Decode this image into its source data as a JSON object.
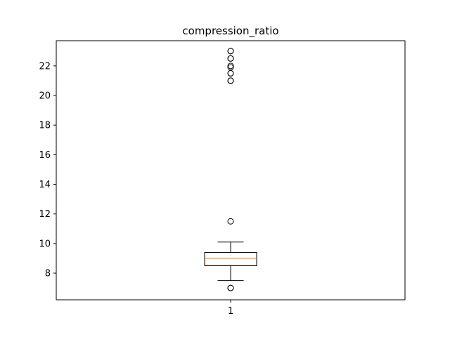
{
  "chart_data": {
    "type": "box",
    "title": "compression_ratio",
    "xlabel": "",
    "ylabel": "",
    "categories": [
      "1"
    ],
    "yticks": [
      8,
      10,
      12,
      14,
      16,
      18,
      20,
      22
    ],
    "ylim": [
      6.2,
      23.7
    ],
    "grid": false,
    "box": {
      "q1": 8.5,
      "median": 9.0,
      "q3": 9.4,
      "whisker_low": 7.5,
      "whisker_high": 10.1
    },
    "outliers": [
      7.0,
      7.0,
      11.5,
      21.0,
      21.0,
      21.5,
      21.5,
      21.9,
      22.0,
      22.5,
      22.5,
      23.0,
      23.0
    ],
    "colors": {
      "box": "#000000",
      "median": "#ff7f0e"
    }
  }
}
